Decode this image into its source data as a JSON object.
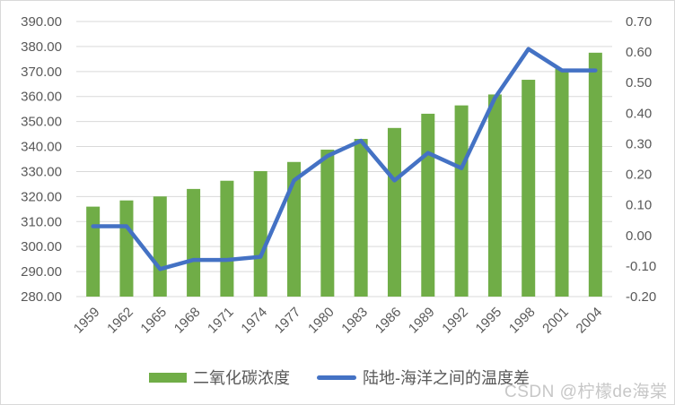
{
  "watermark": "CSDN @柠檬de海棠",
  "legend": {
    "items": [
      {
        "label": "二氧化碳浓度",
        "marker": "bar-swatch",
        "color": "#70AD47"
      },
      {
        "label": "陆地-海洋之间的温度差",
        "marker": "line-swatch",
        "color": "#4472C4"
      }
    ]
  },
  "chart_data": {
    "type": "combo",
    "title": "",
    "categories": [
      "1959",
      "1962",
      "1965",
      "1968",
      "1971",
      "1974",
      "1977",
      "1980",
      "1983",
      "1986",
      "1989",
      "1992",
      "1995",
      "1998",
      "2001",
      "2004"
    ],
    "series": [
      {
        "name": "二氧化碳浓度",
        "type": "bar",
        "axis": "left",
        "color": "#70AD47",
        "values": [
          315.97,
          318.45,
          320.04,
          323.04,
          326.32,
          330.18,
          333.83,
          338.75,
          343.05,
          347.43,
          353.12,
          356.45,
          360.82,
          366.7,
          371.13,
          377.52
        ]
      },
      {
        "name": "陆地-海洋之间的温度差",
        "type": "line",
        "axis": "right",
        "color": "#4472C4",
        "values": [
          0.03,
          0.03,
          -0.11,
          -0.08,
          -0.08,
          -0.07,
          0.18,
          0.26,
          0.31,
          0.18,
          0.27,
          0.22,
          0.45,
          0.61,
          0.54,
          0.54
        ]
      }
    ],
    "left_axis": {
      "min": 280.0,
      "max": 390.0,
      "step": 10.0,
      "tick_format": "0.00"
    },
    "right_axis": {
      "min": -0.2,
      "max": 0.7,
      "step": 0.1,
      "tick_format": "0.00"
    },
    "grid": true,
    "gridline_color": "#d9d9d9",
    "axis_text_color": "#595959",
    "legend_position": "bottom",
    "x_label_rotation": -45
  }
}
